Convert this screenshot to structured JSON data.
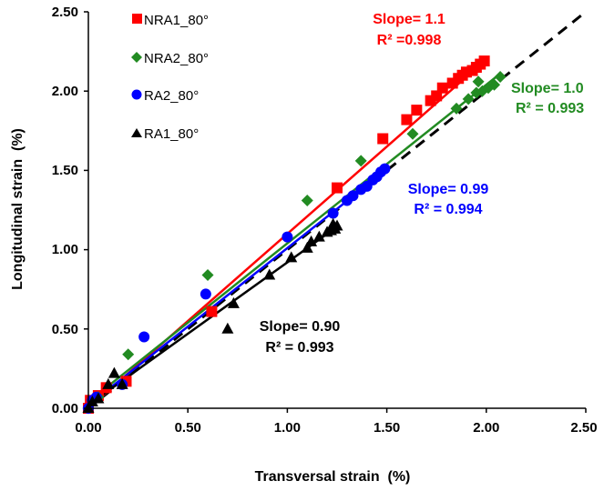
{
  "chart_data": {
    "type": "scatter",
    "xlabel": "Transversal strain  (%)",
    "ylabel": "Longitudinal strain  (%)",
    "xlim": [
      0,
      2.5
    ],
    "ylim": [
      0,
      2.5
    ],
    "x_ticks": [
      "0.00",
      "0.50",
      "1.00",
      "1.50",
      "2.00",
      "2.50"
    ],
    "y_ticks": [
      "0.00",
      "0.50",
      "1.00",
      "1.50",
      "2.00",
      "2.50"
    ],
    "grid": false,
    "legend_position": "top-left",
    "reference_line": {
      "style": "dashed",
      "color": "#000000",
      "slope": 1.0,
      "x": [
        0,
        2.5
      ],
      "y": [
        0,
        2.5
      ]
    },
    "series": [
      {
        "name": "NRA1_80°",
        "marker": "square",
        "color": "#ff0000",
        "fit": {
          "slope": 1.1,
          "intercept": 0.0,
          "x": [
            0,
            2.0
          ]
        },
        "points": [
          [
            0.0,
            0.0
          ],
          [
            0.01,
            0.05
          ],
          [
            0.05,
            0.08
          ],
          [
            0.09,
            0.13
          ],
          [
            0.19,
            0.17
          ],
          [
            0.62,
            0.61
          ],
          [
            1.25,
            1.39
          ],
          [
            1.48,
            1.7
          ],
          [
            1.6,
            1.82
          ],
          [
            1.65,
            1.88
          ],
          [
            1.72,
            1.94
          ],
          [
            1.75,
            1.97
          ],
          [
            1.78,
            2.02
          ],
          [
            1.83,
            2.05
          ],
          [
            1.86,
            2.08
          ],
          [
            1.88,
            2.1
          ],
          [
            1.9,
            2.12
          ],
          [
            1.93,
            2.13
          ],
          [
            1.95,
            2.15
          ],
          [
            1.97,
            2.17
          ],
          [
            1.99,
            2.19
          ]
        ]
      },
      {
        "name": "NRA2_80°",
        "marker": "diamond",
        "color": "#228b22",
        "fit": {
          "slope": 1.0,
          "intercept": 0.04,
          "x": [
            0,
            2.07
          ]
        },
        "points": [
          [
            0.0,
            0.0
          ],
          [
            0.02,
            0.05
          ],
          [
            0.05,
            0.07
          ],
          [
            0.2,
            0.34
          ],
          [
            0.6,
            0.84
          ],
          [
            1.1,
            1.31
          ],
          [
            1.37,
            1.56
          ],
          [
            1.63,
            1.73
          ],
          [
            1.85,
            1.89
          ],
          [
            1.91,
            1.95
          ],
          [
            1.95,
            1.99
          ],
          [
            1.98,
            2.0
          ],
          [
            2.01,
            2.02
          ],
          [
            2.04,
            2.04
          ],
          [
            2.07,
            2.09
          ],
          [
            1.96,
            2.06
          ]
        ]
      },
      {
        "name": "RA2_80°",
        "marker": "circle",
        "color": "#0000ff",
        "fit": {
          "slope": 0.99,
          "intercept": 0.02,
          "x": [
            0,
            1.48
          ]
        },
        "points": [
          [
            0.0,
            0.0
          ],
          [
            0.02,
            0.05
          ],
          [
            0.04,
            0.07
          ],
          [
            0.17,
            0.15
          ],
          [
            0.28,
            0.45
          ],
          [
            0.59,
            0.72
          ],
          [
            1.0,
            1.08
          ],
          [
            1.23,
            1.23
          ],
          [
            1.3,
            1.31
          ],
          [
            1.33,
            1.34
          ],
          [
            1.37,
            1.38
          ],
          [
            1.4,
            1.4
          ],
          [
            1.43,
            1.44
          ],
          [
            1.45,
            1.46
          ],
          [
            1.47,
            1.49
          ],
          [
            1.49,
            1.51
          ]
        ]
      },
      {
        "name": "RA1_80°",
        "marker": "triangle",
        "color": "#000000",
        "fit": {
          "slope": 0.9,
          "intercept": 0.02,
          "x": [
            0,
            1.25
          ]
        },
        "points": [
          [
            0.0,
            0.0
          ],
          [
            0.02,
            0.04
          ],
          [
            0.05,
            0.06
          ],
          [
            0.1,
            0.15
          ],
          [
            0.13,
            0.22
          ],
          [
            0.17,
            0.15
          ],
          [
            0.7,
            0.5
          ],
          [
            0.73,
            0.66
          ],
          [
            0.91,
            0.84
          ],
          [
            1.02,
            0.95
          ],
          [
            1.1,
            1.01
          ],
          [
            1.12,
            1.05
          ],
          [
            1.16,
            1.08
          ],
          [
            1.2,
            1.11
          ],
          [
            1.22,
            1.12
          ],
          [
            1.24,
            1.13
          ],
          [
            1.25,
            1.15
          ],
          [
            1.23,
            1.16
          ]
        ]
      }
    ],
    "annotations": [
      {
        "slope_text": "Slope= 1.1",
        "r2_text": "R² =0.998",
        "color": "#ff0000"
      },
      {
        "slope_text": "Slope= 1.0",
        "r2_text": "R² = 0.993",
        "color": "#228b22"
      },
      {
        "slope_text": "Slope= 0.99",
        "r2_text": "R² = 0.994",
        "color": "#0000ff"
      },
      {
        "slope_text": "Slope= 0.90",
        "r2_text": "R² = 0.993",
        "color": "#000000"
      }
    ]
  }
}
